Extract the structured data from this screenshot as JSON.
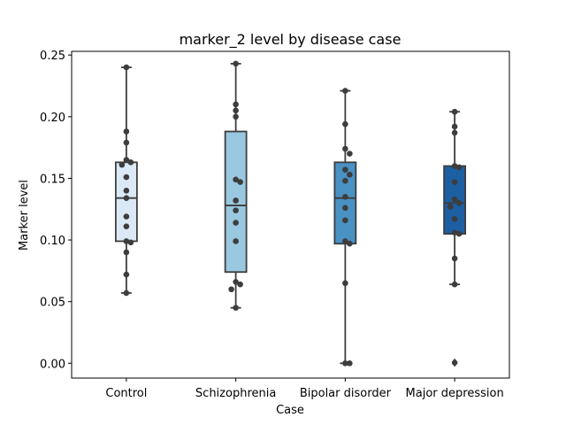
{
  "chart_data": {
    "type": "box",
    "title": "marker_2 level by disease case",
    "xlabel": "Case",
    "ylabel": "Marker level",
    "ylim": [
      -0.012,
      0.253
    ],
    "yticks": [
      0.0,
      0.05,
      0.1,
      0.15,
      0.2,
      0.25
    ],
    "ytick_labels": [
      "0.00",
      "0.05",
      "0.10",
      "0.15",
      "0.20",
      "0.25"
    ],
    "grid": false,
    "categories": [
      "Control",
      "Schizophrenia",
      "Bipolar disorder",
      "Major depression"
    ],
    "colors": [
      "#dbe9f6",
      "#9ac8e0",
      "#4a91c4",
      "#1c5fa3"
    ],
    "point_color": "#3d3d3d",
    "line_color": "#3d3d3d",
    "boxes": [
      {
        "name": "Control",
        "whislo": 0.057,
        "q1": 0.099,
        "median": 0.134,
        "q3": 0.163,
        "whishi": 0.24,
        "fliers": []
      },
      {
        "name": "Schizophrenia",
        "whislo": 0.045,
        "q1": 0.074,
        "median": 0.128,
        "q3": 0.188,
        "whishi": 0.243,
        "fliers": []
      },
      {
        "name": "Bipolar disorder",
        "whislo": 0.0,
        "q1": 0.097,
        "median": 0.134,
        "q3": 0.163,
        "whishi": 0.221,
        "fliers": []
      },
      {
        "name": "Major depression",
        "whislo": 0.064,
        "q1": 0.105,
        "median": 0.13,
        "q3": 0.16,
        "whishi": 0.204,
        "fliers": [
          0.0,
          0.001
        ]
      }
    ],
    "points": [
      [
        0.24,
        0.188,
        0.179,
        0.165,
        0.163,
        0.161,
        0.151,
        0.14,
        0.134,
        0.119,
        0.111,
        0.099,
        0.098,
        0.09,
        0.072,
        0.057
      ],
      [
        0.243,
        0.21,
        0.205,
        0.2,
        0.149,
        0.147,
        0.132,
        0.124,
        0.114,
        0.099,
        0.066,
        0.064,
        0.06,
        0.045
      ],
      [
        0.221,
        0.194,
        0.174,
        0.17,
        0.157,
        0.153,
        0.148,
        0.135,
        0.126,
        0.116,
        0.099,
        0.097,
        0.065,
        0.0,
        0.0
      ],
      [
        0.204,
        0.192,
        0.187,
        0.16,
        0.159,
        0.147,
        0.133,
        0.13,
        0.127,
        0.117,
        0.106,
        0.105,
        0.085,
        0.064
      ]
    ]
  }
}
